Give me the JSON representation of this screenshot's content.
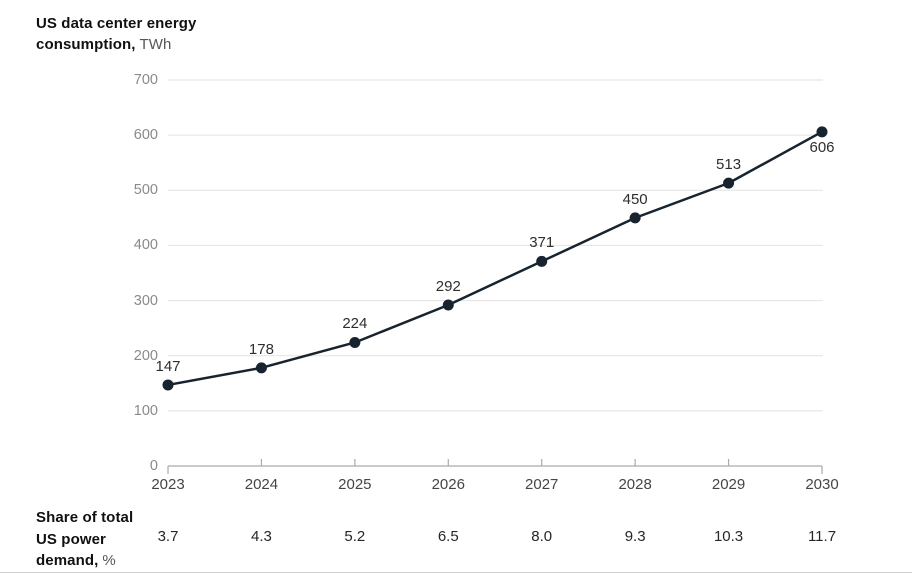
{
  "header": {
    "title_bold": "US data center energy consumption,",
    "title_unit": "TWh"
  },
  "footer": {
    "label_bold": "Share of total US power demand,",
    "label_unit": "%"
  },
  "chart_data": {
    "type": "line",
    "title": "US data center energy consumption, TWh",
    "x": [
      2023,
      2024,
      2025,
      2026,
      2027,
      2028,
      2029,
      2030
    ],
    "series": [
      {
        "name": "US data center energy consumption",
        "unit": "TWh",
        "values": [
          147,
          178,
          224,
          292,
          371,
          450,
          513,
          606
        ]
      }
    ],
    "data_labels": [
      "147",
      "178",
      "224",
      "292",
      "371",
      "450",
      "513",
      "606"
    ],
    "data_label_positions": [
      "above",
      "above",
      "above",
      "above",
      "above",
      "above",
      "above",
      "below"
    ],
    "ylim": [
      0,
      700
    ],
    "yticks": [
      0,
      100,
      200,
      300,
      400,
      500,
      600,
      700
    ],
    "grid": true,
    "legend": "none",
    "secondary_row": {
      "label": "Share of total US power demand, %",
      "values": [
        "3.7",
        "4.3",
        "5.2",
        "6.5",
        "8.0",
        "9.3",
        "10.3",
        "11.7"
      ]
    },
    "colors": {
      "line": "#17242f",
      "marker": "#17242f",
      "grid": "#e2e2e2",
      "axis": "#aaaaaa",
      "y_label": "#8a8a8a",
      "x_label": "#454545",
      "data_label": "#2e2e2e",
      "share_value": "#262626",
      "title_text": "#111111",
      "title_unit": "#555555"
    }
  }
}
